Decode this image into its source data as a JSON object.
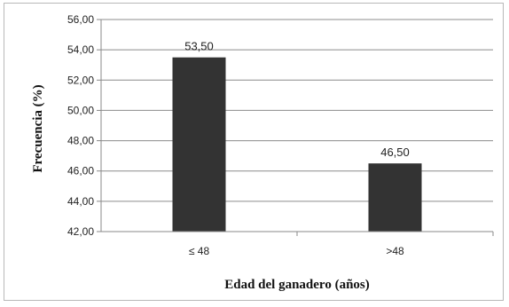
{
  "chart_data": {
    "type": "bar",
    "categories": [
      "≤ 48",
      ">48"
    ],
    "values": [
      53.5,
      46.5
    ],
    "value_labels": [
      "53,50",
      "46,50"
    ],
    "xlabel": "Edad del ganadero (años)",
    "ylabel": "Frecuencia (%)",
    "ylim": [
      42,
      56
    ],
    "yticks": [
      42,
      44,
      46,
      48,
      50,
      52,
      54,
      56
    ],
    "ytick_labels": [
      "42,00",
      "44,00",
      "46,00",
      "48,00",
      "50,00",
      "52,00",
      "54,00",
      "56,00"
    ],
    "grid": true,
    "legend": "none",
    "bar_color": "#333333"
  }
}
